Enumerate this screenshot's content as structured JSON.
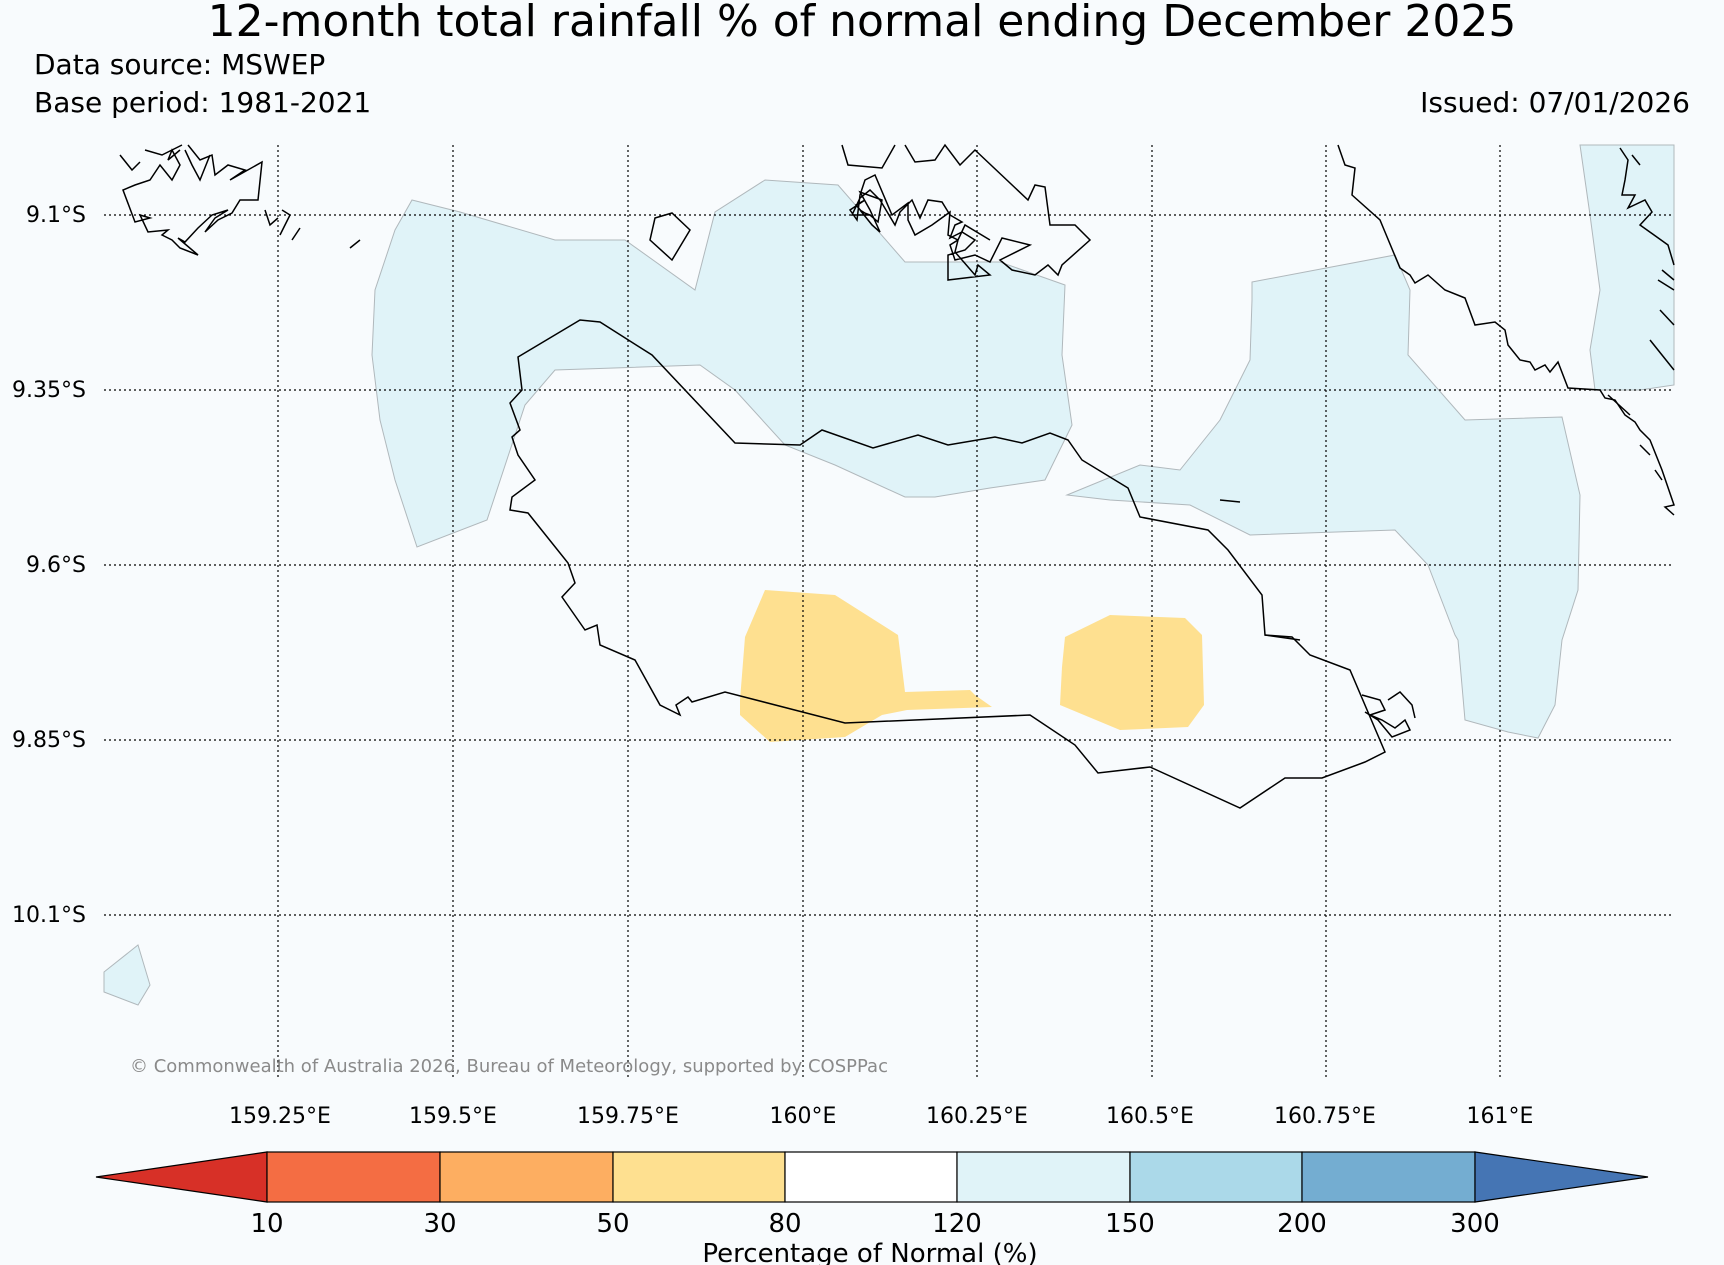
{
  "title": "12-month total rainfall % of normal ending December 2025",
  "data_source": "Data source: MSWEP",
  "base_period": "Base period: 1981-2021",
  "issued": "Issued: 07/01/2026",
  "copyright": "© Commonwealth of Australia 2026, Bureau of Meteorology, supported by COSPPac",
  "map": {
    "lat_labels": [
      "9.1°S",
      "9.35°S",
      "9.6°S",
      "9.85°S",
      "10.1°S"
    ],
    "lon_labels": [
      "159.25°E",
      "159.5°E",
      "159.75°E",
      "160°E",
      "160.25°E",
      "160.5°E",
      "160.75°E",
      "161°E"
    ]
  },
  "colorbar": {
    "title": "Percentage of Normal (%)",
    "ticks": [
      "10",
      "30",
      "50",
      "80",
      "120",
      "150",
      "200",
      "300"
    ],
    "colors": [
      "#d73027",
      "#f46d43",
      "#fdae61",
      "#fee090",
      "#ffffff",
      "#e0f3f8",
      "#abd9e9",
      "#74add1",
      "#4575b4"
    ]
  },
  "colors": {
    "wet_fill": "#e0f3f8",
    "dry_fill": "#fee090",
    "coast": "#000000"
  }
}
